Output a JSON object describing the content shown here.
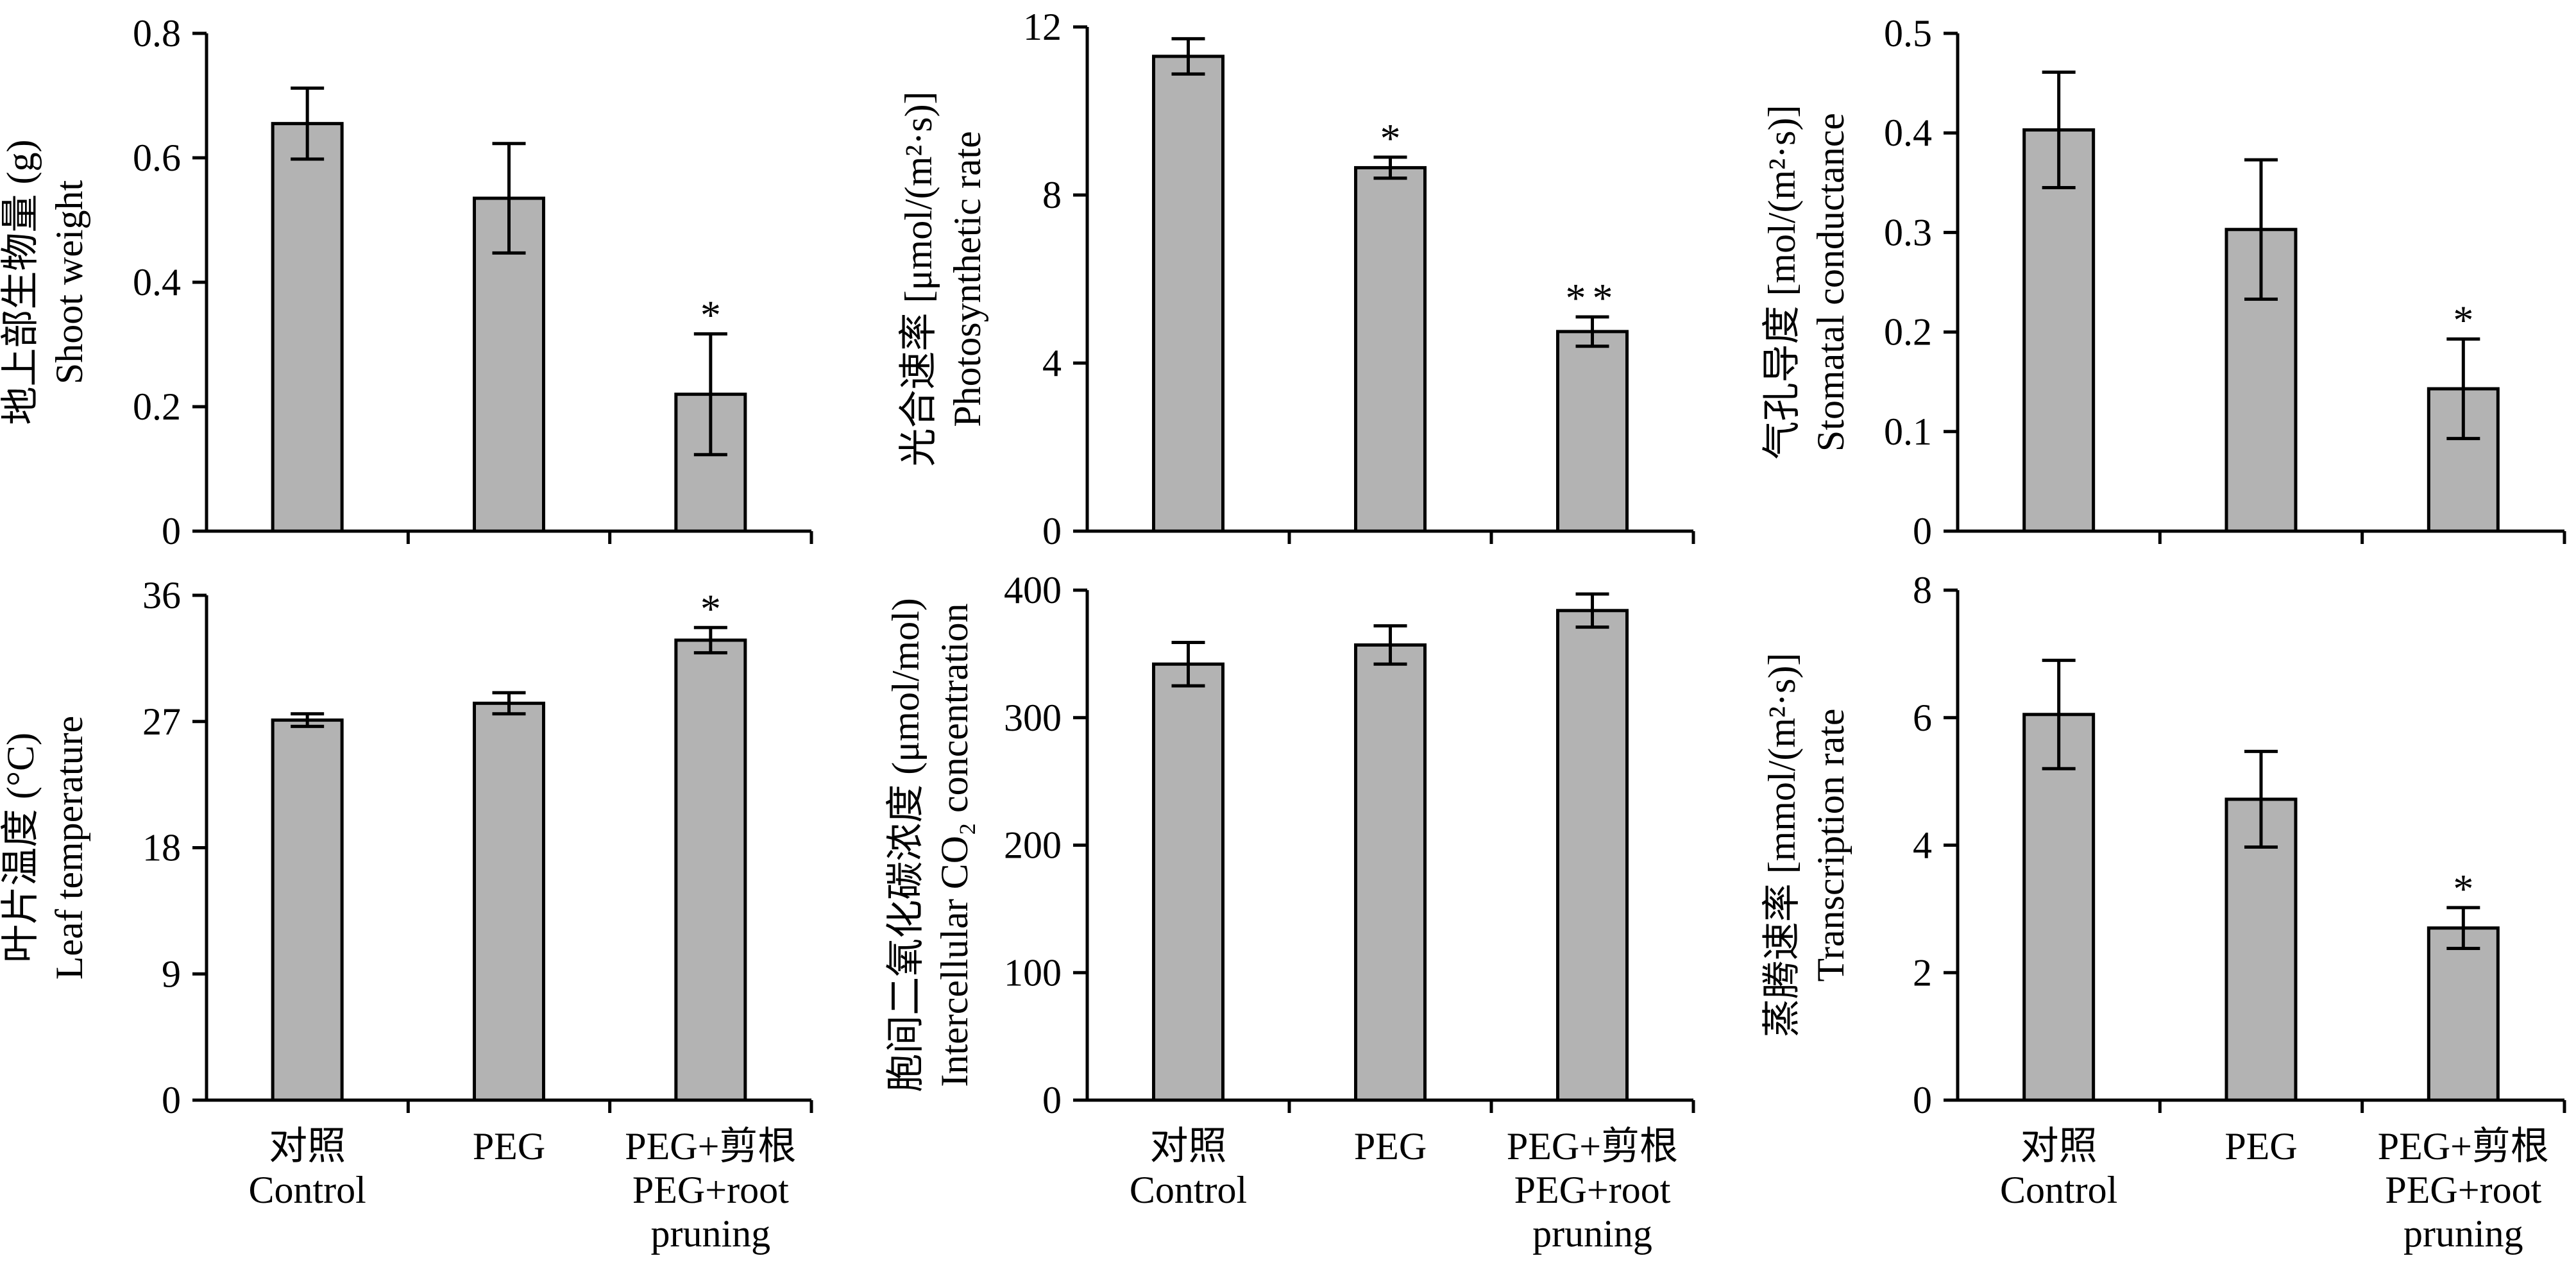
{
  "chart_data": [
    {
      "type": "bar",
      "ylabel": [
        "地上部生物量 (g)",
        "Shoot weight"
      ],
      "categories": [
        [
          "对照",
          "Control"
        ],
        [
          "PEG"
        ],
        [
          "PEG+剪根",
          "PEG+root",
          "pruning"
        ]
      ],
      "values": [
        0.655,
        0.535,
        0.22
      ],
      "errors": [
        0.057,
        0.088,
        0.097
      ],
      "significance": [
        "",
        "",
        "*"
      ],
      "ylim": [
        0,
        0.8
      ],
      "yticks": [
        "0",
        "0.2",
        "0.4",
        "0.6",
        "0.8"
      ],
      "show_xlabels": false
    },
    {
      "type": "bar",
      "ylabel": [
        "光合速率 [μmol/(m²·s)]",
        "Photosynthetic rate"
      ],
      "categories": [
        [
          "对照",
          "Control"
        ],
        [
          "PEG"
        ],
        [
          "PEG+剪根",
          "PEG+root",
          "pruning"
        ]
      ],
      "values": [
        11.3,
        8.65,
        4.75
      ],
      "errors": [
        0.42,
        0.25,
        0.35
      ],
      "significance": [
        "",
        "*",
        "**"
      ],
      "ylim": [
        0,
        12
      ],
      "yticks": [
        "0",
        "4",
        "8",
        "12"
      ],
      "show_xlabels": false
    },
    {
      "type": "bar",
      "ylabel": [
        "气孔导度 [mol/(m²·s)]",
        "Stomatal conductance"
      ],
      "categories": [
        [
          "对照",
          "Control"
        ],
        [
          "PEG"
        ],
        [
          "PEG+剪根",
          "PEG+root",
          "pruning"
        ]
      ],
      "values": [
        0.403,
        0.303,
        0.143
      ],
      "errors": [
        0.058,
        0.07,
        0.05
      ],
      "significance": [
        "",
        "",
        "*"
      ],
      "ylim": [
        0,
        0.5
      ],
      "yticks": [
        "0",
        "0.1",
        "0.2",
        "0.3",
        "0.4",
        "0.5"
      ],
      "show_xlabels": false
    },
    {
      "type": "bar",
      "ylabel": [
        "叶片温度 (°C)",
        "Leaf temperature"
      ],
      "categories": [
        [
          "对照",
          "Control"
        ],
        [
          "PEG"
        ],
        [
          "PEG+剪根",
          "PEG+root",
          "pruning"
        ]
      ],
      "values": [
        27.1,
        28.3,
        32.8
      ],
      "errors": [
        0.45,
        0.75,
        0.9
      ],
      "significance": [
        "",
        "",
        "*"
      ],
      "ylim": [
        0,
        36
      ],
      "yticks": [
        "0",
        "9",
        "18",
        "27",
        "36"
      ],
      "show_xlabels": true
    },
    {
      "type": "bar",
      "ylabel": [
        "胞间二氧化碳浓度 (μmol/mol)",
        "Intercellular CO₂ concentration"
      ],
      "categories": [
        [
          "对照",
          "Control"
        ],
        [
          "PEG"
        ],
        [
          "PEG+剪根",
          "PEG+root",
          "pruning"
        ]
      ],
      "values": [
        342,
        357,
        384
      ],
      "errors": [
        17,
        15,
        13
      ],
      "significance": [
        "",
        "",
        ""
      ],
      "ylim": [
        0,
        400
      ],
      "yticks": [
        "0",
        "100",
        "200",
        "300",
        "400"
      ],
      "show_xlabels": true
    },
    {
      "type": "bar",
      "ylabel": [
        "蒸腾速率 [mmol/(m²·s)]",
        "Transcription rate"
      ],
      "categories": [
        [
          "对照",
          "Control"
        ],
        [
          "PEG"
        ],
        [
          "PEG+剪根",
          "PEG+root",
          "pruning"
        ]
      ],
      "values": [
        6.05,
        4.72,
        2.7
      ],
      "errors": [
        0.85,
        0.75,
        0.32
      ],
      "significance": [
        "",
        "",
        "*"
      ],
      "ylim": [
        0,
        8
      ],
      "yticks": [
        "0",
        "2",
        "4",
        "6",
        "8"
      ],
      "show_xlabels": true
    }
  ]
}
